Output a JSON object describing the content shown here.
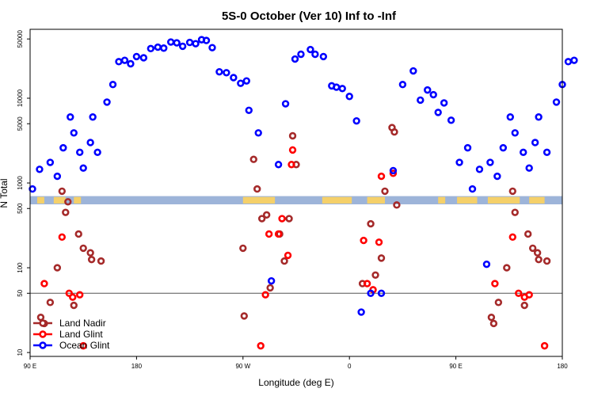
{
  "chart_data": {
    "type": "scatter",
    "title": "5S-0 October (Ver 10)   Inf to -Inf",
    "xlabel": "Longitude (deg E)",
    "ylabel": "N Total",
    "yscale": "log",
    "xlim": [
      90,
      540
    ],
    "ylim": [
      9,
      65000
    ],
    "x_ticks": [
      {
        "value": 90,
        "label": "90 E"
      },
      {
        "value": 180,
        "label": "180"
      },
      {
        "value": 270,
        "label": "90 W"
      },
      {
        "value": 360,
        "label": "0"
      },
      {
        "value": 450,
        "label": "90 E"
      },
      {
        "value": 540,
        "label": "180"
      }
    ],
    "y_ticks": [
      {
        "value": 10,
        "label": "10"
      },
      {
        "value": 50,
        "label": "50"
      },
      {
        "value": 100,
        "label": "100"
      },
      {
        "value": 500,
        "label": "500"
      },
      {
        "value": 1000,
        "label": "1000"
      },
      {
        "value": 5000,
        "label": "5000"
      },
      {
        "value": 10000,
        "label": "10000"
      },
      {
        "value": 50000,
        "label": "50000"
      }
    ],
    "reference_line": 50,
    "map_band": {
      "ymin": 560,
      "ymax": 700,
      "land_color": "#f5d06a",
      "ocean_color": "#9db4d9",
      "land_ranges": [
        [
          96,
          102
        ],
        [
          110,
          120
        ],
        [
          127,
          133
        ],
        [
          270,
          297
        ],
        [
          337,
          362
        ],
        [
          375,
          390
        ],
        [
          435,
          441
        ],
        [
          451,
          468
        ],
        [
          477,
          504
        ],
        [
          512,
          525
        ]
      ]
    },
    "series": [
      {
        "name": "Land Nadir",
        "color": "#a52a2a",
        "points": [
          [
            99,
            26
          ],
          [
            102,
            22
          ],
          [
            107,
            39
          ],
          [
            113,
            100
          ],
          [
            117,
            800
          ],
          [
            120,
            450
          ],
          [
            122,
            600
          ],
          [
            127,
            36
          ],
          [
            131,
            250
          ],
          [
            135,
            170
          ],
          [
            141,
            150
          ],
          [
            142,
            125
          ],
          [
            150,
            120
          ],
          [
            270,
            170
          ],
          [
            271,
            27
          ],
          [
            279,
            1900
          ],
          [
            282,
            850
          ],
          [
            286,
            380
          ],
          [
            290,
            420
          ],
          [
            293,
            58
          ],
          [
            301,
            250
          ],
          [
            305,
            120
          ],
          [
            309,
            380
          ],
          [
            312,
            3600
          ],
          [
            315,
            1650
          ],
          [
            371,
            65
          ],
          [
            378,
            330
          ],
          [
            382,
            82
          ],
          [
            387,
            130
          ],
          [
            396,
            4500
          ],
          [
            398,
            4000
          ],
          [
            400,
            550
          ],
          [
            390,
            800
          ],
          [
            480,
            26
          ],
          [
            482,
            22
          ],
          [
            486,
            39
          ],
          [
            493,
            100
          ],
          [
            498,
            800
          ],
          [
            500,
            450
          ],
          [
            508,
            36
          ],
          [
            511,
            250
          ],
          [
            515,
            170
          ],
          [
            519,
            150
          ],
          [
            520,
            125
          ],
          [
            527,
            120
          ]
        ]
      },
      {
        "name": "Land Glint",
        "color": "#ff0000",
        "points": [
          [
            102,
            65
          ],
          [
            117,
            230
          ],
          [
            123,
            50
          ],
          [
            126,
            45
          ],
          [
            132,
            48
          ],
          [
            135,
            12
          ],
          [
            285,
            12
          ],
          [
            289,
            48
          ],
          [
            292,
            250
          ],
          [
            300,
            250
          ],
          [
            303,
            380
          ],
          [
            308,
            140
          ],
          [
            311,
            1650
          ],
          [
            312,
            2450
          ],
          [
            372,
            210
          ],
          [
            375,
            65
          ],
          [
            380,
            55
          ],
          [
            385,
            200
          ],
          [
            387,
            1200
          ],
          [
            397,
            1300
          ],
          [
            483,
            65
          ],
          [
            498,
            230
          ],
          [
            503,
            50
          ],
          [
            508,
            45
          ],
          [
            512,
            48
          ],
          [
            525,
            12
          ]
        ]
      },
      {
        "name": "Ocean Glint",
        "color": "#0000ff",
        "points": [
          [
            92,
            850
          ],
          [
            98,
            1450
          ],
          [
            107,
            1750
          ],
          [
            113,
            1200
          ],
          [
            118,
            2600
          ],
          [
            124,
            6000
          ],
          [
            127,
            3900
          ],
          [
            132,
            2300
          ],
          [
            135,
            1500
          ],
          [
            141,
            3000
          ],
          [
            143,
            6000
          ],
          [
            147,
            2300
          ],
          [
            155,
            9000
          ],
          [
            160,
            14500
          ],
          [
            165,
            27000
          ],
          [
            170,
            28000
          ],
          [
            175,
            25500
          ],
          [
            180,
            31000
          ],
          [
            186,
            30000
          ],
          [
            192,
            38500
          ],
          [
            198,
            40000
          ],
          [
            203,
            39000
          ],
          [
            209,
            46000
          ],
          [
            214,
            45000
          ],
          [
            219,
            41000
          ],
          [
            225,
            45500
          ],
          [
            230,
            44000
          ],
          [
            235,
            49000
          ],
          [
            239,
            48000
          ],
          [
            244,
            39500
          ],
          [
            250,
            20500
          ],
          [
            256,
            20000
          ],
          [
            262,
            17500
          ],
          [
            268,
            15000
          ],
          [
            273,
            16000
          ],
          [
            275,
            7200
          ],
          [
            283,
            3900
          ],
          [
            294,
            70
          ],
          [
            300,
            1650
          ],
          [
            306,
            8600
          ],
          [
            314,
            29000
          ],
          [
            319,
            33000
          ],
          [
            327,
            37500
          ],
          [
            331,
            33000
          ],
          [
            338,
            31000
          ],
          [
            345,
            14000
          ],
          [
            349,
            13500
          ],
          [
            354,
            13000
          ],
          [
            360,
            10500
          ],
          [
            366,
            5400
          ],
          [
            370,
            30
          ],
          [
            378,
            50
          ],
          [
            387,
            50
          ],
          [
            397,
            1400
          ],
          [
            405,
            14500
          ],
          [
            414,
            21000
          ],
          [
            420,
            9500
          ],
          [
            426,
            12500
          ],
          [
            431,
            11000
          ],
          [
            435,
            6800
          ],
          [
            440,
            8800
          ],
          [
            446,
            5500
          ],
          [
            453,
            1750
          ],
          [
            460,
            2600
          ],
          [
            464,
            850
          ],
          [
            470,
            1450
          ],
          [
            476,
            110
          ],
          [
            479,
            1750
          ],
          [
            485,
            1200
          ],
          [
            490,
            2600
          ],
          [
            496,
            6000
          ],
          [
            500,
            3900
          ],
          [
            507,
            2300
          ],
          [
            512,
            1500
          ],
          [
            517,
            3000
          ],
          [
            520,
            6000
          ],
          [
            527,
            2300
          ],
          [
            535,
            9000
          ],
          [
            540,
            14500
          ],
          [
            545,
            27000
          ],
          [
            550,
            28000
          ]
        ]
      }
    ],
    "legend": {
      "position": "bottom-left",
      "entries": [
        "Land Nadir",
        "Land Glint",
        "Ocean Glint"
      ]
    }
  }
}
